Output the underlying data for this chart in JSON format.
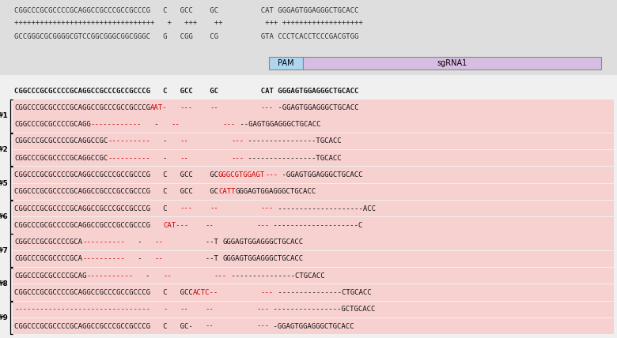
{
  "top_bg": "#dedede",
  "row_bg": "#f7d0d0",
  "white_bg": "#f8f8f8",
  "red": "#cc0000",
  "black": "#111111",
  "pam_color": "#aed6f1",
  "sgrna_color": "#d7bde2",
  "top_ref1": "CGGCCCGCGCCCCGCAGGCCGCCCGCCGCCCG   C   GCC    GC          CAT GGGAGTGGAGGGCTGCACC",
  "top_ticks": "+++++++++++++++++++++++++++++++++   +   +++    ++          +++ +++++++++++++++++++",
  "top_ref2": "GCCGGGCGCGGGGCGTCCGGCGGGCGGCGGGC   G   CGG    CG          GTA CCCTCACCTCCCGACGTGG",
  "header": "CGGCCCGCGCCCCGCAGGCCGCCCGCCGCCCG   C   GCC    GC          CAT GGGAGTGGAGGGCTGCACC",
  "rows": [
    {
      "group": "#1",
      "allele": 1,
      "segments": [
        {
          "text": "CGGCCCGCGCCCCGCAGGCCGCCCGCCGCCCG",
          "color": "black"
        },
        {
          "text": "AAT-",
          "color": "red"
        },
        {
          "text": "   ",
          "color": "black"
        },
        {
          "text": "---",
          "color": "red"
        },
        {
          "text": "    ",
          "color": "black"
        },
        {
          "text": "--",
          "color": "red"
        },
        {
          "text": "          ",
          "color": "black"
        },
        {
          "text": "---",
          "color": "red"
        },
        {
          "text": " -GGAGTGGAGGGCTGCACC",
          "color": "black"
        }
      ]
    },
    {
      "group": "#1",
      "allele": 2,
      "segments": [
        {
          "text": "CGGCCCGCGCCCCGCAGG",
          "color": "black"
        },
        {
          "text": "------------",
          "color": "red"
        },
        {
          "text": "   -   ",
          "color": "black"
        },
        {
          "text": "--",
          "color": "red"
        },
        {
          "text": "          ",
          "color": "black"
        },
        {
          "text": "---",
          "color": "red"
        },
        {
          "text": " --GAGTGGAGGGCTGCACC",
          "color": "black"
        }
      ]
    },
    {
      "group": "#2",
      "allele": 1,
      "segments": [
        {
          "text": "CGGCCCGCGCCCCGCAGGCCGC",
          "color": "black"
        },
        {
          "text": "----------",
          "color": "red"
        },
        {
          "text": "   -   ",
          "color": "black"
        },
        {
          "text": "--",
          "color": "red"
        },
        {
          "text": "          ",
          "color": "black"
        },
        {
          "text": "---",
          "color": "red"
        },
        {
          "text": " ----------------TGCACC",
          "color": "black"
        }
      ]
    },
    {
      "group": "#2",
      "allele": 2,
      "segments": [
        {
          "text": "CGGCCCGCGCCCCGCAGGCCGC",
          "color": "black"
        },
        {
          "text": "----------",
          "color": "red"
        },
        {
          "text": "   -   ",
          "color": "black"
        },
        {
          "text": "--",
          "color": "red"
        },
        {
          "text": "          ",
          "color": "black"
        },
        {
          "text": "---",
          "color": "red"
        },
        {
          "text": " ----------------TGCACC",
          "color": "black"
        }
      ]
    },
    {
      "group": "#5",
      "allele": 1,
      "segments": [
        {
          "text": "CGGCCCGCGCCCCGCAGGCCGCCCGCCGCCCG   C   GCC    GC",
          "color": "black"
        },
        {
          "text": "GGGCGTGGAGT",
          "color": "red"
        },
        {
          "text": "---",
          "color": "red"
        },
        {
          "text": " -GGAGTGGAGGGCTGCACC",
          "color": "black"
        }
      ]
    },
    {
      "group": "#5",
      "allele": 2,
      "segments": [
        {
          "text": "CGGCCCGCGCCCCGCAGGCCGCCCGCCGCCCG   C   GCC    GC",
          "color": "black"
        },
        {
          "text": "CATT",
          "color": "red"
        },
        {
          "text": "GGGAGTGGAGGGCTGCACC",
          "color": "black"
        }
      ]
    },
    {
      "group": "#6",
      "allele": 1,
      "segments": [
        {
          "text": "CGGCCCGCGCCCCGCAGGCCGCCCGCCGCCCG   C   ",
          "color": "black"
        },
        {
          "text": "---",
          "color": "red"
        },
        {
          "text": "    ",
          "color": "black"
        },
        {
          "text": "--",
          "color": "red"
        },
        {
          "text": "          ",
          "color": "black"
        },
        {
          "text": "---",
          "color": "red"
        },
        {
          "text": " --------------------ACC",
          "color": "black"
        }
      ]
    },
    {
      "group": "#6",
      "allele": 2,
      "segments": [
        {
          "text": "CGGCCCGCGCCCCGCAGGCCGCCCGCCGCCCG   ",
          "color": "black"
        },
        {
          "text": "CAT---",
          "color": "red"
        },
        {
          "text": "    ",
          "color": "black"
        },
        {
          "text": "--",
          "color": "red"
        },
        {
          "text": "          ",
          "color": "black"
        },
        {
          "text": "---",
          "color": "red"
        },
        {
          "text": " --------------------C",
          "color": "black"
        }
      ]
    },
    {
      "group": "#7",
      "allele": 1,
      "segments": [
        {
          "text": "CGGCCCGCGCCCCGCA",
          "color": "black"
        },
        {
          "text": "----------",
          "color": "red"
        },
        {
          "text": "   -   ",
          "color": "black"
        },
        {
          "text": "--",
          "color": "red"
        },
        {
          "text": "          --T ",
          "color": "black"
        },
        {
          "text": "GGGAGTGGAGGGCTGCACC",
          "color": "black"
        }
      ]
    },
    {
      "group": "#7",
      "allele": 2,
      "segments": [
        {
          "text": "CGGCCCGCGCCCCGCA",
          "color": "black"
        },
        {
          "text": "----------",
          "color": "red"
        },
        {
          "text": "   -   ",
          "color": "black"
        },
        {
          "text": "--",
          "color": "red"
        },
        {
          "text": "          --T ",
          "color": "black"
        },
        {
          "text": "GGGAGTGGAGGGCTGCACC",
          "color": "black"
        }
      ]
    },
    {
      "group": "#8",
      "allele": 1,
      "segments": [
        {
          "text": "CGGCCCGCGCCCCGCAG",
          "color": "black"
        },
        {
          "text": "-----------",
          "color": "red"
        },
        {
          "text": "   -   ",
          "color": "black"
        },
        {
          "text": "--",
          "color": "red"
        },
        {
          "text": "          ",
          "color": "black"
        },
        {
          "text": "---",
          "color": "red"
        },
        {
          "text": " ---------------CTGCACC",
          "color": "black"
        }
      ]
    },
    {
      "group": "#8",
      "allele": 2,
      "segments": [
        {
          "text": "CGGCCCGCGCCCCGCAGGCCGCCCGCCGCCCG   C   GCC",
          "color": "black"
        },
        {
          "text": "ACTC--",
          "color": "red"
        },
        {
          "text": "          ",
          "color": "black"
        },
        {
          "text": "---",
          "color": "red"
        },
        {
          "text": " ---------------CTGCACC",
          "color": "black"
        }
      ]
    },
    {
      "group": "#9",
      "allele": 1,
      "segments": [
        {
          "text": "--------------------------------",
          "color": "red"
        },
        {
          "text": "   ",
          "color": "black"
        },
        {
          "text": "-",
          "color": "red"
        },
        {
          "text": "   ",
          "color": "black"
        },
        {
          "text": "--",
          "color": "red"
        },
        {
          "text": "    ",
          "color": "black"
        },
        {
          "text": "--",
          "color": "red"
        },
        {
          "text": "          ",
          "color": "black"
        },
        {
          "text": "---",
          "color": "red"
        },
        {
          "text": " ----------------GCTGCACC",
          "color": "black"
        }
      ]
    },
    {
      "group": "#9",
      "allele": 2,
      "segments": [
        {
          "text": "CGGCCCGCGCCCCGCAGGCCGCCCGCCGCCCG   C   GC-   ",
          "color": "black"
        },
        {
          "text": "--",
          "color": "red"
        },
        {
          "text": "          ",
          "color": "black"
        },
        {
          "text": "---",
          "color": "red"
        },
        {
          "text": " -GGAGTGGAGGGCTGCACC",
          "color": "black"
        }
      ]
    }
  ]
}
